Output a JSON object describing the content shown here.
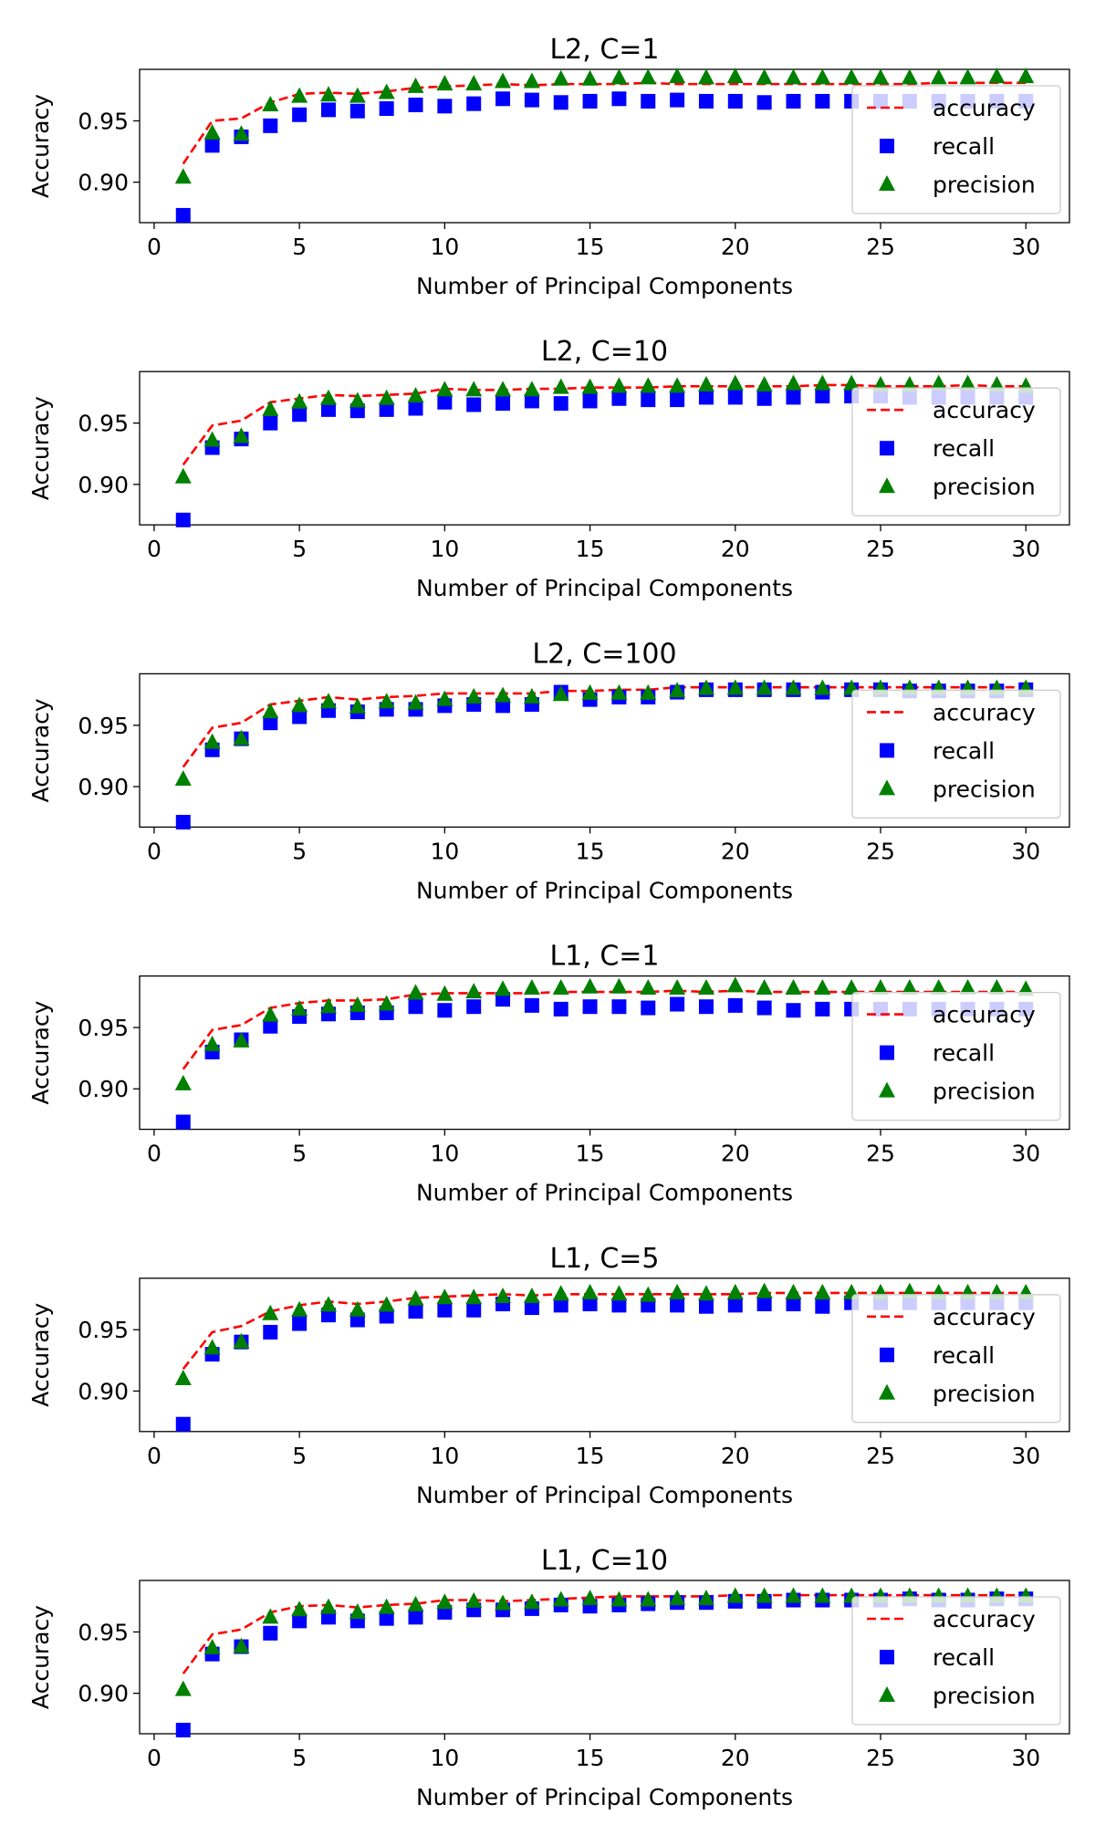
{
  "colors": {
    "accuracy": "#ff0000",
    "recall": "#0000ff",
    "precision": "#008000"
  },
  "chart_data": [
    {
      "type": "scatter",
      "title": "L2, C=1",
      "xlabel": "Number of Principal Components",
      "ylabel": "Accuracy",
      "xlim": [
        -0.5,
        31.5
      ],
      "ylim": [
        0.867,
        0.992
      ],
      "xticks": [
        0,
        5,
        10,
        15,
        20,
        25,
        30
      ],
      "yticks": [
        "0.90",
        "0.95"
      ],
      "grid": false,
      "legend": "lower right",
      "x": [
        1,
        2,
        3,
        4,
        5,
        6,
        7,
        8,
        9,
        10,
        11,
        12,
        13,
        14,
        15,
        16,
        17,
        18,
        19,
        20,
        21,
        22,
        23,
        24,
        25,
        26,
        27,
        28,
        29,
        30
      ],
      "series": [
        {
          "name": "accuracy",
          "style": "dashed-line",
          "values": [
            0.915,
            0.95,
            0.952,
            0.965,
            0.972,
            0.973,
            0.972,
            0.974,
            0.977,
            0.978,
            0.979,
            0.98,
            0.979,
            0.98,
            0.98,
            0.98,
            0.981,
            0.98,
            0.98,
            0.98,
            0.98,
            0.98,
            0.98,
            0.98,
            0.98,
            0.98,
            0.981,
            0.981,
            0.981,
            0.981
          ]
        },
        {
          "name": "recall",
          "style": "square",
          "values": [
            0.873,
            0.93,
            0.937,
            0.946,
            0.955,
            0.959,
            0.958,
            0.96,
            0.963,
            0.962,
            0.964,
            0.968,
            0.967,
            0.965,
            0.966,
            0.968,
            0.966,
            0.967,
            0.966,
            0.966,
            0.965,
            0.966,
            0.966,
            0.966,
            0.966,
            0.966,
            0.966,
            0.966,
            0.966,
            0.966
          ]
        },
        {
          "name": "precision",
          "style": "triangle",
          "values": [
            0.904,
            0.94,
            0.939,
            0.963,
            0.97,
            0.971,
            0.97,
            0.973,
            0.978,
            0.98,
            0.98,
            0.982,
            0.982,
            0.984,
            0.984,
            0.985,
            0.985,
            0.986,
            0.985,
            0.986,
            0.985,
            0.985,
            0.985,
            0.985,
            0.985,
            0.985,
            0.985,
            0.985,
            0.986,
            0.986
          ]
        }
      ]
    },
    {
      "type": "scatter",
      "title": "L2, C=10",
      "xlabel": "Number of Principal Components",
      "ylabel": "Accuracy",
      "xlim": [
        -0.5,
        31.5
      ],
      "ylim": [
        0.867,
        0.992
      ],
      "xticks": [
        0,
        5,
        10,
        15,
        20,
        25,
        30
      ],
      "yticks": [
        "0.90",
        "0.95"
      ],
      "grid": false,
      "legend": "lower right",
      "x": [
        1,
        2,
        3,
        4,
        5,
        6,
        7,
        8,
        9,
        10,
        11,
        12,
        13,
        14,
        15,
        16,
        17,
        18,
        19,
        20,
        21,
        22,
        23,
        24,
        25,
        26,
        27,
        28,
        29,
        30
      ],
      "series": [
        {
          "name": "accuracy",
          "style": "dashed-line",
          "values": [
            0.916,
            0.948,
            0.952,
            0.967,
            0.97,
            0.973,
            0.972,
            0.973,
            0.974,
            0.978,
            0.977,
            0.977,
            0.978,
            0.978,
            0.979,
            0.979,
            0.979,
            0.98,
            0.98,
            0.98,
            0.98,
            0.98,
            0.981,
            0.981,
            0.98,
            0.98,
            0.98,
            0.981,
            0.98,
            0.98
          ]
        },
        {
          "name": "recall",
          "style": "square",
          "values": [
            0.871,
            0.93,
            0.937,
            0.95,
            0.957,
            0.961,
            0.96,
            0.961,
            0.962,
            0.967,
            0.965,
            0.966,
            0.968,
            0.966,
            0.968,
            0.97,
            0.969,
            0.969,
            0.971,
            0.971,
            0.97,
            0.971,
            0.972,
            0.972,
            0.972,
            0.971,
            0.971,
            0.971,
            0.971,
            0.971
          ]
        },
        {
          "name": "precision",
          "style": "triangle",
          "values": [
            0.906,
            0.936,
            0.939,
            0.961,
            0.967,
            0.97,
            0.968,
            0.97,
            0.972,
            0.977,
            0.977,
            0.977,
            0.977,
            0.979,
            0.979,
            0.98,
            0.98,
            0.98,
            0.981,
            0.982,
            0.981,
            0.982,
            0.982,
            0.982,
            0.981,
            0.981,
            0.982,
            0.982,
            0.981,
            0.98
          ]
        }
      ]
    },
    {
      "type": "scatter",
      "title": "L2, C=100",
      "xlabel": "Number of Principal Components",
      "ylabel": "Accuracy",
      "xlim": [
        -0.5,
        31.5
      ],
      "ylim": [
        0.867,
        0.992
      ],
      "xticks": [
        0,
        5,
        10,
        15,
        20,
        25,
        30
      ],
      "yticks": [
        "0.90",
        "0.95"
      ],
      "grid": false,
      "legend": "lower right",
      "x": [
        1,
        2,
        3,
        4,
        5,
        6,
        7,
        8,
        9,
        10,
        11,
        12,
        13,
        14,
        15,
        16,
        17,
        18,
        19,
        20,
        21,
        22,
        23,
        24,
        25,
        26,
        27,
        28,
        29,
        30
      ],
      "series": [
        {
          "name": "accuracy",
          "style": "dashed-line",
          "values": [
            0.916,
            0.948,
            0.952,
            0.967,
            0.97,
            0.973,
            0.971,
            0.973,
            0.974,
            0.976,
            0.976,
            0.976,
            0.976,
            0.978,
            0.978,
            0.979,
            0.979,
            0.981,
            0.981,
            0.981,
            0.981,
            0.981,
            0.981,
            0.981,
            0.981,
            0.981,
            0.981,
            0.981,
            0.981,
            0.981
          ]
        },
        {
          "name": "recall",
          "style": "square",
          "values": [
            0.871,
            0.93,
            0.939,
            0.952,
            0.957,
            0.962,
            0.961,
            0.963,
            0.963,
            0.966,
            0.967,
            0.966,
            0.967,
            0.977,
            0.971,
            0.973,
            0.973,
            0.977,
            0.979,
            0.979,
            0.979,
            0.979,
            0.977,
            0.979,
            0.979,
            0.978,
            0.978,
            0.978,
            0.978,
            0.979
          ]
        },
        {
          "name": "precision",
          "style": "triangle",
          "values": [
            0.906,
            0.936,
            0.939,
            0.961,
            0.966,
            0.969,
            0.965,
            0.969,
            0.968,
            0.971,
            0.973,
            0.974,
            0.973,
            0.975,
            0.976,
            0.976,
            0.976,
            0.978,
            0.98,
            0.98,
            0.98,
            0.98,
            0.98,
            0.98,
            0.98,
            0.98,
            0.98,
            0.98,
            0.98,
            0.98
          ]
        }
      ]
    },
    {
      "type": "scatter",
      "title": "L1, C=1",
      "xlabel": "Number of Principal Components",
      "ylabel": "Accuracy",
      "xlim": [
        -0.5,
        31.5
      ],
      "ylim": [
        0.867,
        0.992
      ],
      "xticks": [
        0,
        5,
        10,
        15,
        20,
        25,
        30
      ],
      "yticks": [
        "0.90",
        "0.95"
      ],
      "grid": false,
      "legend": "lower right",
      "x": [
        1,
        2,
        3,
        4,
        5,
        6,
        7,
        8,
        9,
        10,
        11,
        12,
        13,
        14,
        15,
        16,
        17,
        18,
        19,
        20,
        21,
        22,
        23,
        24,
        25,
        26,
        27,
        28,
        29,
        30
      ],
      "series": [
        {
          "name": "accuracy",
          "style": "dashed-line",
          "values": [
            0.916,
            0.948,
            0.952,
            0.966,
            0.97,
            0.972,
            0.972,
            0.973,
            0.977,
            0.978,
            0.978,
            0.978,
            0.978,
            0.979,
            0.979,
            0.979,
            0.979,
            0.98,
            0.979,
            0.98,
            0.979,
            0.979,
            0.979,
            0.979,
            0.979,
            0.979,
            0.979,
            0.979,
            0.979,
            0.979
          ]
        },
        {
          "name": "recall",
          "style": "square",
          "values": [
            0.873,
            0.93,
            0.94,
            0.951,
            0.959,
            0.961,
            0.962,
            0.962,
            0.967,
            0.964,
            0.967,
            0.973,
            0.968,
            0.965,
            0.967,
            0.967,
            0.966,
            0.969,
            0.967,
            0.968,
            0.966,
            0.964,
            0.965,
            0.965,
            0.965,
            0.965,
            0.965,
            0.965,
            0.965,
            0.965
          ]
        },
        {
          "name": "precision",
          "style": "triangle",
          "values": [
            0.904,
            0.936,
            0.939,
            0.96,
            0.965,
            0.967,
            0.968,
            0.969,
            0.978,
            0.977,
            0.979,
            0.981,
            0.982,
            0.982,
            0.983,
            0.983,
            0.982,
            0.982,
            0.982,
            0.984,
            0.982,
            0.982,
            0.982,
            0.982,
            0.982,
            0.982,
            0.982,
            0.982,
            0.982,
            0.981
          ]
        }
      ]
    },
    {
      "type": "scatter",
      "title": "L1, C=5",
      "xlabel": "Number of Principal Components",
      "ylabel": "Accuracy",
      "xlim": [
        -0.5,
        31.5
      ],
      "ylim": [
        0.867,
        0.992
      ],
      "xticks": [
        0,
        5,
        10,
        15,
        20,
        25,
        30
      ],
      "yticks": [
        "0.90",
        "0.95"
      ],
      "grid": false,
      "legend": "lower right",
      "x": [
        1,
        2,
        3,
        4,
        5,
        6,
        7,
        8,
        9,
        10,
        11,
        12,
        13,
        14,
        15,
        16,
        17,
        18,
        19,
        20,
        21,
        22,
        23,
        24,
        25,
        26,
        27,
        28,
        29,
        30
      ],
      "series": [
        {
          "name": "accuracy",
          "style": "dashed-line",
          "values": [
            0.918,
            0.948,
            0.953,
            0.965,
            0.97,
            0.973,
            0.971,
            0.973,
            0.976,
            0.977,
            0.978,
            0.979,
            0.978,
            0.979,
            0.979,
            0.979,
            0.979,
            0.979,
            0.979,
            0.979,
            0.98,
            0.98,
            0.98,
            0.98,
            0.98,
            0.98,
            0.98,
            0.98,
            0.98,
            0.98
          ]
        },
        {
          "name": "recall",
          "style": "square",
          "values": [
            0.873,
            0.93,
            0.94,
            0.948,
            0.955,
            0.962,
            0.958,
            0.961,
            0.965,
            0.966,
            0.966,
            0.971,
            0.968,
            0.97,
            0.971,
            0.97,
            0.97,
            0.97,
            0.969,
            0.97,
            0.971,
            0.971,
            0.969,
            0.972,
            0.972,
            0.972,
            0.972,
            0.972,
            0.972,
            0.972
          ]
        },
        {
          "name": "precision",
          "style": "triangle",
          "values": [
            0.91,
            0.935,
            0.94,
            0.963,
            0.966,
            0.97,
            0.966,
            0.97,
            0.975,
            0.976,
            0.976,
            0.977,
            0.977,
            0.979,
            0.98,
            0.979,
            0.978,
            0.98,
            0.979,
            0.98,
            0.981,
            0.98,
            0.98,
            0.98,
            0.98,
            0.981,
            0.98,
            0.98,
            0.98,
            0.98
          ]
        }
      ]
    },
    {
      "type": "scatter",
      "title": "L1, C=10",
      "xlabel": "Number of Principal Components",
      "ylabel": "Accuracy",
      "xlim": [
        -0.5,
        31.5
      ],
      "ylim": [
        0.867,
        0.992
      ],
      "xticks": [
        0,
        5,
        10,
        15,
        20,
        25,
        30
      ],
      "yticks": [
        "0.90",
        "0.95"
      ],
      "grid": false,
      "legend": "lower right",
      "x": [
        1,
        2,
        3,
        4,
        5,
        6,
        7,
        8,
        9,
        10,
        11,
        12,
        13,
        14,
        15,
        16,
        17,
        18,
        19,
        20,
        21,
        22,
        23,
        24,
        25,
        26,
        27,
        28,
        29,
        30
      ],
      "series": [
        {
          "name": "accuracy",
          "style": "dashed-line",
          "values": [
            0.916,
            0.948,
            0.952,
            0.966,
            0.971,
            0.972,
            0.97,
            0.972,
            0.973,
            0.976,
            0.976,
            0.975,
            0.976,
            0.977,
            0.978,
            0.979,
            0.979,
            0.979,
            0.979,
            0.98,
            0.98,
            0.98,
            0.98,
            0.98,
            0.98,
            0.98,
            0.98,
            0.98,
            0.98,
            0.98
          ]
        },
        {
          "name": "recall",
          "style": "square",
          "values": [
            0.87,
            0.932,
            0.938,
            0.949,
            0.959,
            0.962,
            0.959,
            0.961,
            0.962,
            0.966,
            0.968,
            0.968,
            0.969,
            0.972,
            0.971,
            0.972,
            0.973,
            0.974,
            0.974,
            0.975,
            0.975,
            0.976,
            0.976,
            0.976,
            0.976,
            0.977,
            0.976,
            0.976,
            0.977,
            0.977
          ]
        },
        {
          "name": "precision",
          "style": "triangle",
          "values": [
            0.903,
            0.937,
            0.938,
            0.962,
            0.968,
            0.97,
            0.966,
            0.97,
            0.972,
            0.974,
            0.975,
            0.973,
            0.974,
            0.976,
            0.977,
            0.976,
            0.976,
            0.977,
            0.977,
            0.979,
            0.979,
            0.979,
            0.979,
            0.979,
            0.979,
            0.979,
            0.979,
            0.979,
            0.979,
            0.979
          ]
        }
      ]
    }
  ]
}
